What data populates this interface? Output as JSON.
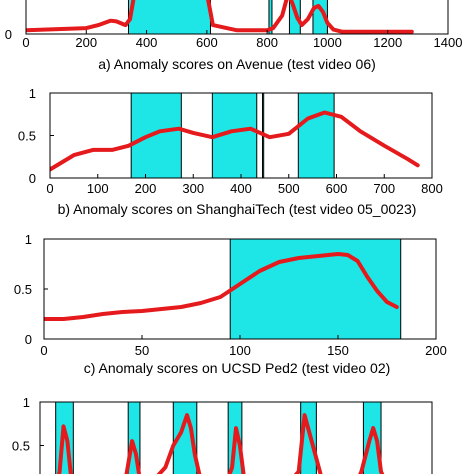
{
  "colors": {
    "highlight": "#1ee6e6",
    "curve": "#e41a1c",
    "axis": "#000000",
    "background": "#ffffff"
  },
  "chart_data": [
    {
      "type": "line",
      "caption": "a) Anomaly scores on Avenue (test video 06)",
      "xlim": [
        0,
        1400
      ],
      "ylim": [
        0,
        1
      ],
      "x_ticks": [
        0,
        200,
        400,
        600,
        800,
        1000,
        1200,
        1400
      ],
      "y_ticks": [
        0
      ],
      "anomaly_intervals": [
        [
          340,
          612
        ],
        [
          806,
          816
        ],
        [
          874,
          910
        ],
        [
          952,
          1000
        ]
      ],
      "series": [
        {
          "x": [
            0,
            200,
            240,
            280,
            300,
            330,
            345,
            360,
            380,
            420,
            470,
            520,
            560,
            600,
            620,
            700,
            800,
            820,
            850,
            870,
            885,
            900,
            915,
            935,
            955,
            970,
            985,
            1000,
            1020,
            1050,
            1100,
            1200,
            1280
          ],
          "y": [
            0.05,
            0.08,
            0.12,
            0.18,
            0.17,
            0.12,
            0.2,
            0.55,
            0.85,
            0.95,
            0.98,
            0.95,
            0.9,
            0.55,
            0.12,
            0.05,
            0.05,
            0.08,
            0.25,
            0.55,
            0.4,
            0.22,
            0.12,
            0.2,
            0.35,
            0.38,
            0.3,
            0.15,
            0.06,
            0.03,
            0.03,
            0.03,
            0.03
          ]
        }
      ]
    },
    {
      "type": "line",
      "caption": "b) Anomaly scores on ShanghaiTech (test video 05_0023)",
      "xlim": [
        0,
        800
      ],
      "ylim": [
        0,
        1
      ],
      "x_ticks": [
        0,
        100,
        200,
        300,
        400,
        500,
        600,
        700,
        800
      ],
      "y_ticks": [
        0,
        0.5,
        1
      ],
      "y_tick_labels": [
        "0",
        "0.5",
        "1"
      ],
      "anomaly_intervals": [
        [
          170,
          275
        ],
        [
          340,
          433
        ],
        [
          445,
          447
        ],
        [
          520,
          595
        ]
      ],
      "series": [
        {
          "x": [
            0,
            50,
            90,
            130,
            165,
            200,
            230,
            270,
            300,
            340,
            380,
            420,
            460,
            500,
            540,
            575,
            610,
            650,
            700,
            750,
            770
          ],
          "y": [
            0.1,
            0.27,
            0.33,
            0.33,
            0.38,
            0.48,
            0.55,
            0.58,
            0.53,
            0.48,
            0.55,
            0.58,
            0.48,
            0.52,
            0.7,
            0.77,
            0.72,
            0.55,
            0.38,
            0.22,
            0.15
          ]
        }
      ]
    },
    {
      "type": "line",
      "caption": "c) Anomaly scores on UCSD Ped2 (test video 02)",
      "xlim": [
        0,
        200
      ],
      "ylim": [
        0,
        1
      ],
      "x_ticks": [
        0,
        50,
        100,
        150,
        200
      ],
      "y_ticks": [
        0,
        0.5,
        1
      ],
      "y_tick_labels": [
        "0",
        "0.5",
        "1"
      ],
      "anomaly_intervals": [
        [
          95,
          182
        ]
      ],
      "series": [
        {
          "x": [
            0,
            10,
            20,
            30,
            40,
            50,
            60,
            70,
            80,
            90,
            100,
            110,
            120,
            130,
            140,
            150,
            155,
            160,
            165,
            170,
            175,
            180
          ],
          "y": [
            0.2,
            0.2,
            0.22,
            0.25,
            0.27,
            0.28,
            0.3,
            0.32,
            0.36,
            0.42,
            0.55,
            0.68,
            0.77,
            0.81,
            0.83,
            0.85,
            0.84,
            0.78,
            0.62,
            0.48,
            0.37,
            0.32
          ]
        }
      ]
    },
    {
      "type": "line",
      "caption": "",
      "xlim": [
        0,
        1000
      ],
      "ylim": [
        0,
        1
      ],
      "y_ticks": [
        0.5,
        1
      ],
      "y_tick_labels": [
        "0.5",
        "1"
      ],
      "anomaly_intervals": [
        [
          40,
          85
        ],
        [
          225,
          255
        ],
        [
          340,
          400
        ],
        [
          480,
          515
        ],
        [
          665,
          705
        ],
        [
          825,
          870
        ]
      ],
      "series": [
        {
          "x": [
            20,
            40,
            50,
            60,
            70,
            80,
            90,
            100,
            180,
            220,
            235,
            245,
            255,
            265,
            275,
            300,
            320,
            340,
            360,
            375,
            385,
            395,
            410,
            430,
            470,
            490,
            500,
            510,
            520,
            540,
            620,
            660,
            675,
            690,
            705,
            720,
            760,
            800,
            820,
            840,
            850,
            860,
            870,
            890,
            920
          ],
          "y": [
            0.0,
            0.0,
            0.2,
            0.72,
            0.55,
            0.1,
            0.0,
            0.0,
            0.0,
            0.15,
            0.55,
            0.4,
            0.1,
            0.0,
            0.05,
            0.15,
            0.25,
            0.5,
            0.65,
            0.85,
            0.7,
            0.4,
            0.1,
            0.0,
            0.0,
            0.25,
            0.7,
            0.5,
            0.15,
            0.0,
            0.0,
            0.2,
            0.85,
            0.6,
            0.35,
            0.1,
            0.0,
            0.0,
            0.2,
            0.55,
            0.7,
            0.55,
            0.2,
            0.0,
            0.0
          ]
        }
      ]
    }
  ]
}
